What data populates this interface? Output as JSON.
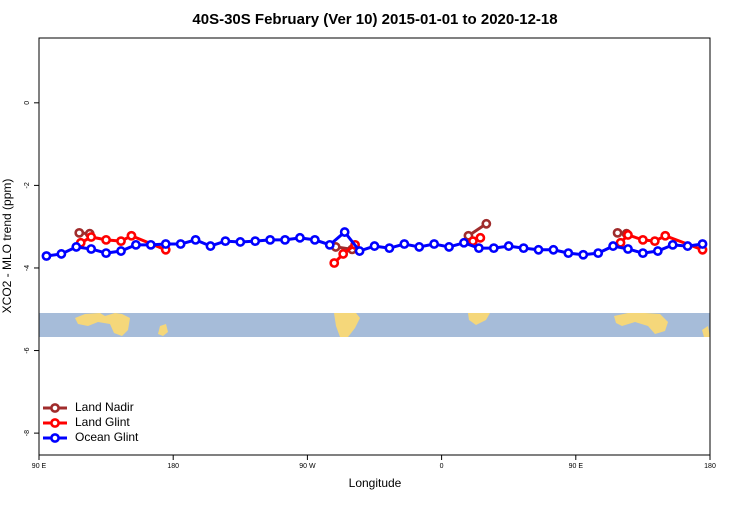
{
  "chart_data": {
    "type": "line",
    "title": "40S-30S February (Ver 10)   2015-01-01 to 2020-12-18",
    "xlabel": "Longitude",
    "ylabel": "XCO2 - MLO trend (ppm)",
    "xlim": [
      90,
      540
    ],
    "xticks": [
      {
        "value": 90,
        "label": "90 E"
      },
      {
        "value": 180,
        "label": "180"
      },
      {
        "value": 270,
        "label": "90 W"
      },
      {
        "value": 360,
        "label": "0"
      },
      {
        "value": 450,
        "label": "90 E"
      },
      {
        "value": 540,
        "label": "180"
      }
    ],
    "ylim": [
      -8.53,
      1.57
    ],
    "yticks": [
      0,
      -2,
      -4,
      -6,
      -8
    ],
    "legend": "bottom-left",
    "series": [
      {
        "name": "Land Nadir",
        "color": "#a02c2c",
        "x": [
          117,
          124,
          200,
          289,
          300,
          340,
          378,
          390,
          430,
          478,
          484
        ],
        "values": [
          -3.15,
          -3.17,
          null,
          -3.49,
          -3.55,
          null,
          -3.22,
          -2.93,
          null,
          -3.15,
          -3.17
        ]
      },
      {
        "name": "Land Glint",
        "color": "#ff0000",
        "x": [
          118,
          125,
          135,
          145,
          152,
          175,
          230,
          288,
          294,
          302,
          340,
          381,
          386,
          430,
          480,
          485,
          495,
          503,
          510,
          535
        ],
        "values": [
          -3.39,
          -3.25,
          -3.32,
          -3.35,
          -3.22,
          -3.56,
          null,
          -3.88,
          -3.66,
          -3.44,
          null,
          -3.35,
          -3.27,
          null,
          -3.39,
          -3.2,
          -3.32,
          -3.35,
          -3.22,
          -3.56
        ]
      },
      {
        "name": "Ocean Glint",
        "color": "#0000ff",
        "x": [
          95,
          105,
          115,
          125,
          135,
          145,
          155,
          165,
          175,
          185,
          195,
          205,
          215,
          225,
          235,
          245,
          255,
          265,
          275,
          285,
          295,
          305,
          315,
          325,
          335,
          345,
          355,
          365,
          375,
          385,
          395,
          405,
          415,
          425,
          435,
          445,
          455,
          465,
          475,
          485,
          495,
          505,
          515,
          525,
          535
        ],
        "values": [
          -3.71,
          -3.66,
          -3.49,
          -3.54,
          -3.64,
          -3.59,
          -3.44,
          -3.44,
          -3.42,
          -3.42,
          -3.32,
          -3.47,
          -3.35,
          -3.37,
          -3.35,
          -3.32,
          -3.32,
          -3.27,
          -3.32,
          -3.44,
          -3.13,
          -3.59,
          -3.47,
          -3.52,
          -3.42,
          -3.49,
          -3.42,
          -3.49,
          -3.39,
          -3.52,
          -3.52,
          -3.47,
          -3.52,
          -3.56,
          -3.56,
          -3.64,
          -3.68,
          -3.64,
          -3.47,
          -3.54,
          -3.64,
          -3.59,
          -3.44,
          -3.47,
          -3.42
        ]
      }
    ]
  }
}
